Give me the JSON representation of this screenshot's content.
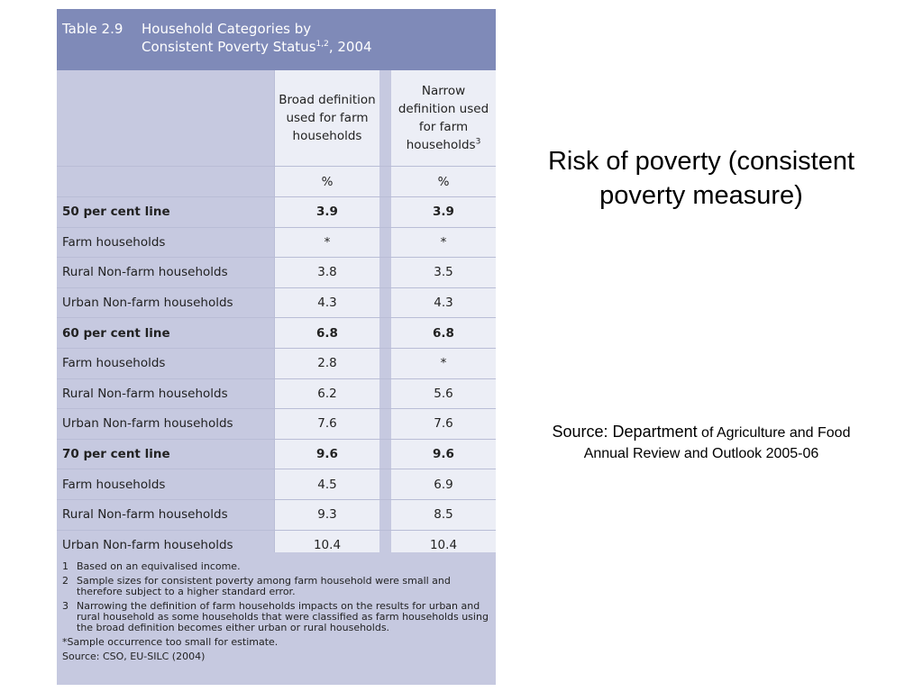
{
  "table": {
    "label": "Table 2.9",
    "title_line1": "Household Categories by",
    "title_line2": "Consistent Poverty Status",
    "title_sup": "1,2",
    "title_year": ", 2004",
    "col1_header": "Broad definition used for farm households",
    "col2_header": "Narrow definition used for farm households",
    "col2_sup": "3",
    "units": [
      "%",
      "%"
    ],
    "rows": [
      {
        "label": "50 per cent line",
        "broad": "3.9",
        "narrow": "3.9",
        "bold": true
      },
      {
        "label": "Farm households",
        "broad": "*",
        "narrow": "*"
      },
      {
        "label": "Rural Non-farm households",
        "broad": "3.8",
        "narrow": "3.5"
      },
      {
        "label": "Urban Non-farm households",
        "broad": "4.3",
        "narrow": "4.3"
      },
      {
        "label": "60 per cent line",
        "broad": "6.8",
        "narrow": "6.8",
        "bold": true
      },
      {
        "label": "Farm households",
        "broad": "2.8",
        "narrow": "*"
      },
      {
        "label": "Rural Non-farm households",
        "broad": "6.2",
        "narrow": "5.6"
      },
      {
        "label": "Urban Non-farm households",
        "broad": "7.6",
        "narrow": "7.6"
      },
      {
        "label": "70 per cent line",
        "broad": "9.6",
        "narrow": "9.6",
        "bold": true
      },
      {
        "label": "Farm households",
        "broad": "4.5",
        "narrow": "6.9"
      },
      {
        "label": "Rural Non-farm households",
        "broad": "9.3",
        "narrow": "8.5"
      },
      {
        "label": "Urban Non-farm households",
        "broad": "10.4",
        "narrow": "10.4"
      }
    ],
    "notes": [
      {
        "num": "1",
        "text": "Based on an equivalised income."
      },
      {
        "num": "2",
        "text": "Sample sizes for consistent poverty among farm household were small and therefore subject to a higher standard error."
      },
      {
        "num": "3",
        "text": "Narrowing the definition of farm households impacts on the results for urban and rural household as some households that were classified as farm households using the broad definition becomes either urban or rural households."
      }
    ],
    "asterisk_note": "*Sample occurrence too small for estimate.",
    "source": "Source: CSO, EU-SILC (2004)"
  },
  "slide": {
    "title": "Risk of poverty (consistent poverty measure)",
    "source_prefix": "Source:  Department",
    "source_rest": " of Agriculture and Food Annual Review and Outlook 2005-06"
  }
}
